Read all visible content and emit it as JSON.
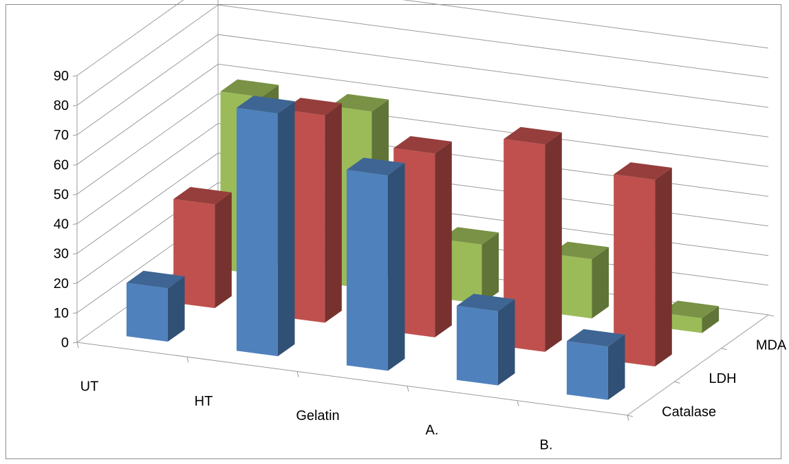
{
  "chart_data": {
    "type": "bar",
    "variant": "3d-column",
    "categories": [
      "UT",
      "HT",
      "Gelatin",
      "A.",
      "B."
    ],
    "series": [
      {
        "name": "Catalase",
        "values": [
          18,
          82,
          66,
          25,
          18
        ],
        "color": "#4F81BD"
      },
      {
        "name": "LDH",
        "values": [
          35,
          70,
          62,
          70,
          63
        ],
        "color": "#C0504D"
      },
      {
        "name": "MDA",
        "values": [
          60,
          60,
          20,
          20,
          5
        ],
        "color": "#9BBB59"
      }
    ],
    "yticks": [
      "0",
      "10",
      "20",
      "30",
      "40",
      "50",
      "60",
      "70",
      "80",
      "90"
    ],
    "ylim": [
      0,
      90
    ],
    "grid": true
  }
}
